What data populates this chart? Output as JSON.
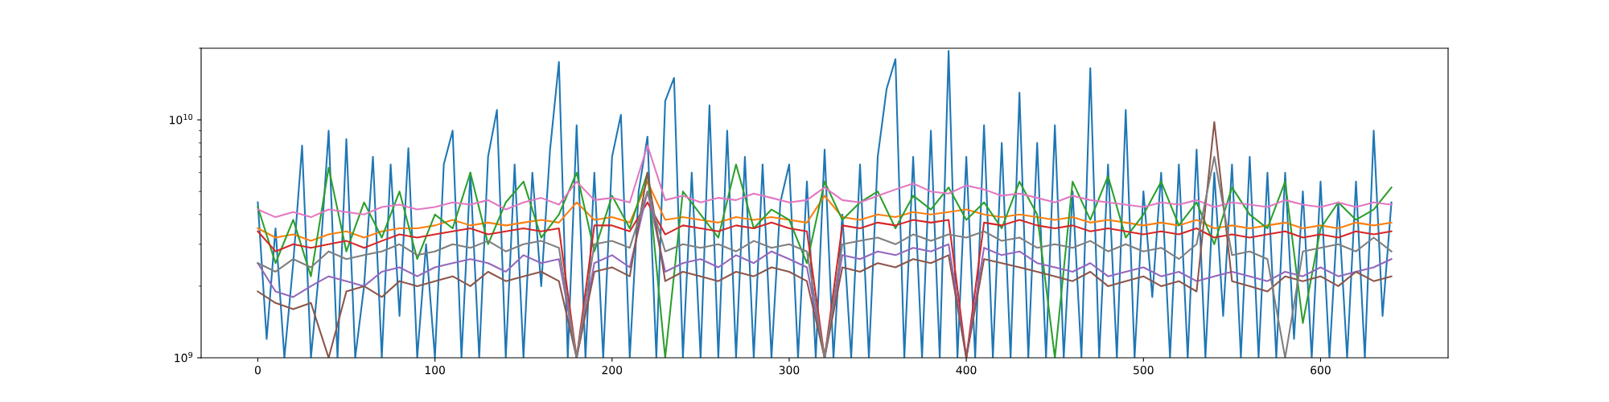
{
  "chart_data": {
    "type": "line",
    "log": "y",
    "grid": false,
    "legend": false,
    "marker": "none",
    "line_style": "solid",
    "xlim": [
      -32,
      672
    ],
    "xticks": [
      0,
      100,
      200,
      300,
      400,
      500,
      600
    ],
    "ylim": [
      1000000000.0,
      20000000000.0
    ],
    "yticks": [
      {
        "value": 1000000000.0,
        "label": "10$^{9}$"
      },
      {
        "value": 10000000000.0,
        "label": "10$^{10}$"
      }
    ],
    "series": [
      {
        "color": "#1f77b4",
        "x": [
          0,
          5,
          10,
          15,
          20,
          25,
          30,
          35,
          40,
          45,
          50,
          55,
          60,
          65,
          70,
          75,
          80,
          85,
          90,
          95,
          100,
          105,
          110,
          115,
          120,
          125,
          130,
          135,
          140,
          145,
          150,
          155,
          160,
          165,
          170,
          175,
          180,
          185,
          190,
          195,
          200,
          205,
          210,
          215,
          220,
          225,
          230,
          235,
          240,
          245,
          250,
          255,
          260,
          265,
          270,
          275,
          280,
          285,
          290,
          295,
          300,
          305,
          310,
          315,
          320,
          325,
          330,
          335,
          340,
          345,
          350,
          355,
          360,
          365,
          370,
          375,
          380,
          385,
          390,
          395,
          400,
          405,
          410,
          415,
          420,
          425,
          430,
          435,
          440,
          445,
          450,
          455,
          460,
          465,
          470,
          475,
          480,
          485,
          490,
          495,
          500,
          505,
          510,
          515,
          520,
          525,
          530,
          535,
          540,
          545,
          550,
          555,
          560,
          565,
          570,
          575,
          580,
          585,
          590,
          595,
          600,
          605,
          610,
          615,
          620,
          625,
          630,
          635,
          640
        ],
        "values": [
          4500000000.0,
          1200000000.0,
          3500000000.0,
          1000000000.0,
          2500000000.0,
          7800000000.0,
          1000000000.0,
          2500000000.0,
          9000000000.0,
          1000000000.0,
          8300000000.0,
          1000000000.0,
          2000000000.0,
          7000000000.0,
          1000000000.0,
          6500000000.0,
          1500000000.0,
          7600000000.0,
          1000000000.0,
          3000000000.0,
          1000000000.0,
          6500000000.0,
          9000000000.0,
          1000000000.0,
          6000000000.0,
          1000000000.0,
          7000000000.0,
          11000000000.0,
          1000000000.0,
          6500000000.0,
          1000000000.0,
          6000000000.0,
          2000000000.0,
          7500000000.0,
          17500000000.0,
          1000000000.0,
          9500000000.0,
          1000000000.0,
          6000000000.0,
          1000000000.0,
          7000000000.0,
          10500000000.0,
          1000000000.0,
          5000000000.0,
          8500000000.0,
          1000000000.0,
          12000000000.0,
          15000000000.0,
          1000000000.0,
          6000000000.0,
          1000000000.0,
          11500000000.0,
          1000000000.0,
          9000000000.0,
          1000000000.0,
          7000000000.0,
          1000000000.0,
          6500000000.0,
          1000000000.0,
          4500000000.0,
          6500000000.0,
          1000000000.0,
          5500000000.0,
          1000000000.0,
          7500000000.0,
          1000000000.0,
          4000000000.0,
          1000000000.0,
          6500000000.0,
          1000000000.0,
          7000000000.0,
          13500000000.0,
          18000000000.0,
          1000000000.0,
          7000000000.0,
          1000000000.0,
          9000000000.0,
          1000000000.0,
          19500000000.0,
          1000000000.0,
          7000000000.0,
          1000000000.0,
          9500000000.0,
          1000000000.0,
          8000000000.0,
          1000000000.0,
          13000000000.0,
          1000000000.0,
          8000000000.0,
          1000000000.0,
          9500000000.0,
          1000000000.0,
          5000000000.0,
          1000000000.0,
          16500000000.0,
          1000000000.0,
          6500000000.0,
          1000000000.0,
          11000000000.0,
          1000000000.0,
          5000000000.0,
          1800000000.0,
          6000000000.0,
          1000000000.0,
          6500000000.0,
          1000000000.0,
          7500000000.0,
          1000000000.0,
          6000000000.0,
          1500000000.0,
          6500000000.0,
          1000000000.0,
          7000000000.0,
          1000000000.0,
          6000000000.0,
          1000000000.0,
          6000000000.0,
          1200000000.0,
          5000000000.0,
          1000000000.0,
          5500000000.0,
          1000000000.0,
          4500000000.0,
          1000000000.0,
          5500000000.0,
          1000000000.0,
          9000000000.0,
          1500000000.0,
          4500000000.0
        ]
      },
      {
        "color": "#ff7f0e",
        "x": [
          0,
          10,
          20,
          30,
          40,
          50,
          60,
          70,
          80,
          90,
          100,
          110,
          120,
          130,
          140,
          150,
          160,
          170,
          180,
          190,
          200,
          210,
          220,
          230,
          240,
          250,
          260,
          270,
          280,
          290,
          300,
          310,
          320,
          330,
          340,
          350,
          360,
          370,
          380,
          390,
          400,
          410,
          420,
          430,
          440,
          450,
          460,
          470,
          480,
          490,
          500,
          510,
          520,
          530,
          540,
          550,
          560,
          570,
          580,
          590,
          600,
          610,
          620,
          630,
          640
        ],
        "values": [
          3500000000.0,
          3200000000.0,
          3300000000.0,
          3100000000.0,
          3300000000.0,
          3400000000.0,
          3200000000.0,
          3400000000.0,
          3500000000.0,
          3500000000.0,
          3600000000.0,
          3800000000.0,
          3600000000.0,
          3700000000.0,
          3600000000.0,
          3700000000.0,
          3800000000.0,
          3700000000.0,
          4500000000.0,
          3800000000.0,
          3900000000.0,
          3700000000.0,
          5500000000.0,
          3800000000.0,
          3900000000.0,
          3800000000.0,
          3700000000.0,
          3900000000.0,
          3800000000.0,
          3900000000.0,
          3800000000.0,
          3700000000.0,
          4800000000.0,
          3900000000.0,
          3800000000.0,
          4000000000.0,
          3900000000.0,
          4100000000.0,
          4000000000.0,
          4100000000.0,
          4200000000.0,
          4000000000.0,
          3900000000.0,
          4000000000.0,
          3900000000.0,
          3800000000.0,
          3900000000.0,
          3700000000.0,
          3800000000.0,
          3700000000.0,
          3600000000.0,
          3700000000.0,
          3600000000.0,
          3800000000.0,
          3500000000.0,
          3600000000.0,
          3500000000.0,
          3600000000.0,
          3700000000.0,
          3500000000.0,
          3600000000.0,
          3500000000.0,
          3700000000.0,
          3600000000.0,
          3700000000.0
        ]
      },
      {
        "color": "#2ca02c",
        "x": [
          0,
          10,
          20,
          30,
          40,
          50,
          60,
          70,
          80,
          90,
          100,
          110,
          120,
          130,
          140,
          150,
          160,
          170,
          180,
          190,
          200,
          210,
          220,
          230,
          240,
          250,
          260,
          270,
          280,
          290,
          300,
          310,
          320,
          330,
          340,
          350,
          360,
          370,
          380,
          390,
          400,
          410,
          420,
          430,
          440,
          450,
          460,
          470,
          480,
          490,
          500,
          510,
          520,
          530,
          540,
          550,
          560,
          570,
          580,
          590,
          600,
          610,
          620,
          630,
          640
        ],
        "values": [
          4300000000.0,
          2500000000.0,
          3800000000.0,
          2200000000.0,
          6300000000.0,
          2800000000.0,
          4500000000.0,
          3200000000.0,
          5000000000.0,
          2600000000.0,
          4000000000.0,
          3500000000.0,
          6000000000.0,
          3000000000.0,
          4500000000.0,
          5500000000.0,
          3200000000.0,
          4000000000.0,
          6000000000.0,
          2800000000.0,
          4800000000.0,
          3500000000.0,
          6000000000.0,
          1000000000.0,
          5000000000.0,
          4000000000.0,
          3200000000.0,
          6500000000.0,
          3500000000.0,
          4200000000.0,
          3800000000.0,
          2500000000.0,
          5500000000.0,
          3800000000.0,
          4500000000.0,
          5000000000.0,
          3500000000.0,
          4800000000.0,
          4200000000.0,
          5200000000.0,
          3800000000.0,
          4500000000.0,
          3500000000.0,
          5500000000.0,
          4000000000.0,
          1000000000.0,
          5500000000.0,
          3800000000.0,
          5800000000.0,
          3200000000.0,
          4000000000.0,
          5500000000.0,
          3600000000.0,
          4500000000.0,
          3000000000.0,
          5200000000.0,
          4000000000.0,
          3500000000.0,
          5500000000.0,
          1400000000.0,
          3500000000.0,
          4500000000.0,
          3800000000.0,
          4200000000.0,
          5200000000.0
        ]
      },
      {
        "color": "#d62728",
        "x": [
          0,
          10,
          20,
          30,
          40,
          50,
          60,
          70,
          80,
          90,
          100,
          110,
          120,
          130,
          140,
          150,
          160,
          170,
          180,
          190,
          200,
          210,
          220,
          230,
          240,
          250,
          260,
          270,
          280,
          290,
          300,
          310,
          320,
          330,
          340,
          350,
          360,
          370,
          380,
          390,
          400,
          410,
          420,
          430,
          440,
          450,
          460,
          470,
          480,
          490,
          500,
          510,
          520,
          530,
          540,
          550,
          560,
          570,
          580,
          590,
          600,
          610,
          620,
          630,
          640
        ],
        "values": [
          3400000000.0,
          2800000000.0,
          3000000000.0,
          2900000000.0,
          3000000000.0,
          3100000000.0,
          2900000000.0,
          3100000000.0,
          3300000000.0,
          3200000000.0,
          3300000000.0,
          3400000000.0,
          3500000000.0,
          3300000000.0,
          3400000000.0,
          3500000000.0,
          3400000000.0,
          3500000000.0,
          1000000000.0,
          3600000000.0,
          3600000000.0,
          3400000000.0,
          4500000000.0,
          3300000000.0,
          3600000000.0,
          3500000000.0,
          3400000000.0,
          3600000000.0,
          3500000000.0,
          3700000000.0,
          3500000000.0,
          3400000000.0,
          1000000000.0,
          3600000000.0,
          3500000000.0,
          3700000000.0,
          3600000000.0,
          3800000000.0,
          3700000000.0,
          3800000000.0,
          1000000000.0,
          3700000000.0,
          3600000000.0,
          3800000000.0,
          3600000000.0,
          3500000000.0,
          3600000000.0,
          3400000000.0,
          3500000000.0,
          3400000000.0,
          3300000000.0,
          3400000000.0,
          3300000000.0,
          3500000000.0,
          3200000000.0,
          3300000000.0,
          3200000000.0,
          3300000000.0,
          3400000000.0,
          3200000000.0,
          3300000000.0,
          3200000000.0,
          3400000000.0,
          3300000000.0,
          3400000000.0
        ]
      },
      {
        "color": "#9467bd",
        "x": [
          0,
          10,
          20,
          30,
          40,
          50,
          60,
          70,
          80,
          90,
          100,
          110,
          120,
          130,
          140,
          150,
          160,
          170,
          180,
          190,
          200,
          210,
          220,
          230,
          240,
          250,
          260,
          270,
          280,
          290,
          300,
          310,
          320,
          330,
          340,
          350,
          360,
          370,
          380,
          390,
          400,
          410,
          420,
          430,
          440,
          450,
          460,
          470,
          480,
          490,
          500,
          510,
          520,
          530,
          540,
          550,
          560,
          570,
          580,
          590,
          600,
          610,
          620,
          630,
          640
        ],
        "values": [
          2500000000.0,
          1900000000.0,
          1800000000.0,
          2000000000.0,
          2200000000.0,
          2100000000.0,
          2000000000.0,
          2300000000.0,
          2400000000.0,
          2200000000.0,
          2400000000.0,
          2500000000.0,
          2600000000.0,
          2500000000.0,
          2300000000.0,
          2700000000.0,
          2500000000.0,
          2600000000.0,
          1000000000.0,
          2500000000.0,
          2700000000.0,
          2400000000.0,
          5000000000.0,
          2300000000.0,
          2500000000.0,
          2600000000.0,
          2400000000.0,
          2700000000.0,
          2500000000.0,
          2800000000.0,
          2600000000.0,
          2400000000.0,
          1000000000.0,
          2700000000.0,
          2600000000.0,
          2800000000.0,
          2700000000.0,
          2900000000.0,
          2800000000.0,
          3000000000.0,
          1000000000.0,
          2900000000.0,
          2700000000.0,
          2800000000.0,
          2500000000.0,
          2400000000.0,
          2300000000.0,
          2500000000.0,
          2200000000.0,
          2300000000.0,
          2400000000.0,
          2200000000.0,
          2300000000.0,
          2100000000.0,
          2200000000.0,
          2300000000.0,
          2200000000.0,
          2100000000.0,
          2300000000.0,
          2200000000.0,
          2400000000.0,
          2200000000.0,
          2300000000.0,
          2400000000.0,
          2600000000.0
        ]
      },
      {
        "color": "#8c564b",
        "x": [
          0,
          10,
          20,
          30,
          40,
          50,
          60,
          70,
          80,
          90,
          100,
          110,
          120,
          130,
          140,
          150,
          160,
          170,
          180,
          190,
          200,
          210,
          220,
          230,
          240,
          250,
          260,
          270,
          280,
          290,
          300,
          310,
          320,
          330,
          340,
          350,
          360,
          370,
          380,
          390,
          400,
          410,
          420,
          430,
          440,
          450,
          460,
          470,
          480,
          490,
          500,
          510,
          520,
          530,
          540,
          550,
          560,
          570,
          580,
          590,
          600,
          610,
          620,
          630,
          640
        ],
        "values": [
          1900000000.0,
          1700000000.0,
          1600000000.0,
          1700000000.0,
          1000000000.0,
          1900000000.0,
          2000000000.0,
          1800000000.0,
          2100000000.0,
          2000000000.0,
          2100000000.0,
          2200000000.0,
          2000000000.0,
          2300000000.0,
          2100000000.0,
          2200000000.0,
          2300000000.0,
          2100000000.0,
          1000000000.0,
          2300000000.0,
          2400000000.0,
          2200000000.0,
          6000000000.0,
          2100000000.0,
          2300000000.0,
          2200000000.0,
          2100000000.0,
          2300000000.0,
          2200000000.0,
          2400000000.0,
          2300000000.0,
          2100000000.0,
          1000000000.0,
          2400000000.0,
          2300000000.0,
          2500000000.0,
          2400000000.0,
          2600000000.0,
          2500000000.0,
          2700000000.0,
          1000000000.0,
          2600000000.0,
          2500000000.0,
          2400000000.0,
          2300000000.0,
          2200000000.0,
          2100000000.0,
          2300000000.0,
          2000000000.0,
          2100000000.0,
          2200000000.0,
          2000000000.0,
          2100000000.0,
          1900000000.0,
          9800000000.0,
          2100000000.0,
          2000000000.0,
          1900000000.0,
          2200000000.0,
          2100000000.0,
          2200000000.0,
          2000000000.0,
          2300000000.0,
          2100000000.0,
          2200000000.0
        ]
      },
      {
        "color": "#e377c2",
        "x": [
          0,
          10,
          20,
          30,
          40,
          50,
          60,
          70,
          80,
          90,
          100,
          110,
          120,
          130,
          140,
          150,
          160,
          170,
          180,
          190,
          200,
          210,
          220,
          230,
          240,
          250,
          260,
          270,
          280,
          290,
          300,
          310,
          320,
          330,
          340,
          350,
          360,
          370,
          380,
          390,
          400,
          410,
          420,
          430,
          440,
          450,
          460,
          470,
          480,
          490,
          500,
          510,
          520,
          530,
          540,
          550,
          560,
          570,
          580,
          590,
          600,
          610,
          620,
          630,
          640
        ],
        "values": [
          4200000000.0,
          3900000000.0,
          4100000000.0,
          3900000000.0,
          4200000000.0,
          4100000000.0,
          4000000000.0,
          4300000000.0,
          4400000000.0,
          4200000000.0,
          4300000000.0,
          4500000000.0,
          4400000000.0,
          4600000000.0,
          4200000000.0,
          4500000000.0,
          4700000000.0,
          4400000000.0,
          5500000000.0,
          4600000000.0,
          4700000000.0,
          4500000000.0,
          7800000000.0,
          4600000000.0,
          4800000000.0,
          4500000000.0,
          4700000000.0,
          4600000000.0,
          4900000000.0,
          4700000000.0,
          4500000000.0,
          4600000000.0,
          5200000000.0,
          4600000000.0,
          4500000000.0,
          4800000000.0,
          5100000000.0,
          5400000000.0,
          5000000000.0,
          4900000000.0,
          5300000000.0,
          5100000000.0,
          4800000000.0,
          4900000000.0,
          4700000000.0,
          4500000000.0,
          4800000000.0,
          4600000000.0,
          4500000000.0,
          4400000000.0,
          4300000000.0,
          4500000000.0,
          4400000000.0,
          4600000000.0,
          4300000000.0,
          4500000000.0,
          4400000000.0,
          4300000000.0,
          4600000000.0,
          4400000000.0,
          4300000000.0,
          4500000000.0,
          4300000000.0,
          4500000000.0,
          4400000000.0
        ]
      },
      {
        "color": "#7f7f7f",
        "x": [
          0,
          10,
          20,
          30,
          40,
          50,
          60,
          70,
          80,
          90,
          100,
          110,
          120,
          130,
          140,
          150,
          160,
          170,
          180,
          190,
          200,
          210,
          220,
          230,
          240,
          250,
          260,
          270,
          280,
          290,
          300,
          310,
          320,
          330,
          340,
          350,
          360,
          370,
          380,
          390,
          400,
          410,
          420,
          430,
          440,
          450,
          460,
          470,
          480,
          490,
          500,
          510,
          520,
          530,
          540,
          550,
          560,
          570,
          580,
          590,
          600,
          610,
          620,
          630,
          640
        ],
        "values": [
          2500000000.0,
          2300000000.0,
          2600000000.0,
          2400000000.0,
          2800000000.0,
          2600000000.0,
          2700000000.0,
          2800000000.0,
          3000000000.0,
          2700000000.0,
          2800000000.0,
          3000000000.0,
          2900000000.0,
          3100000000.0,
          2800000000.0,
          3000000000.0,
          3100000000.0,
          2900000000.0,
          1000000000.0,
          3000000000.0,
          3100000000.0,
          2900000000.0,
          5000000000.0,
          2800000000.0,
          3000000000.0,
          2900000000.0,
          3000000000.0,
          2800000000.0,
          3100000000.0,
          2900000000.0,
          3000000000.0,
          2800000000.0,
          1000000000.0,
          3000000000.0,
          3100000000.0,
          3200000000.0,
          3000000000.0,
          3300000000.0,
          3100000000.0,
          3300000000.0,
          3200000000.0,
          3400000000.0,
          3100000000.0,
          3200000000.0,
          2900000000.0,
          3000000000.0,
          2900000000.0,
          3100000000.0,
          2800000000.0,
          3000000000.0,
          2800000000.0,
          2900000000.0,
          2600000000.0,
          3000000000.0,
          7000000000.0,
          2700000000.0,
          2800000000.0,
          2600000000.0,
          1000000000.0,
          2800000000.0,
          2900000000.0,
          3000000000.0,
          2800000000.0,
          3200000000.0,
          2800000000.0
        ]
      }
    ]
  }
}
